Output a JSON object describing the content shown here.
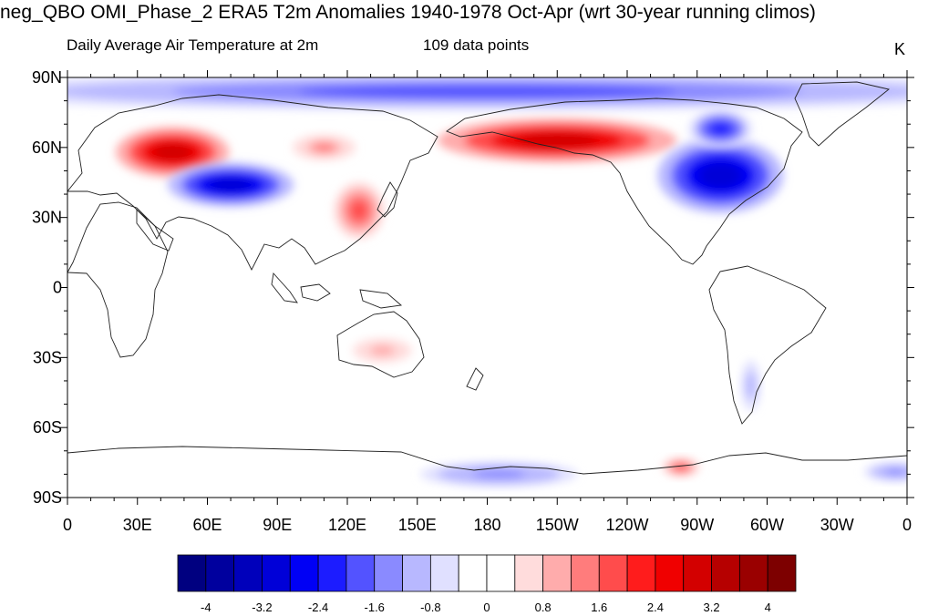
{
  "header": {
    "title": "neg_QBO OMI_Phase_2 ERA5 T2m Anomalies 1940-1978 Oct-Apr (wrt 30-year running climos)",
    "subtitle_left": "Daily Average Air Temperature at 2m",
    "subtitle_center": "109 data points",
    "units": "K"
  },
  "map": {
    "projection": "equirectangular",
    "center_longitude": 180,
    "lon_range": [
      0,
      360
    ],
    "lat_range": [
      -90,
      90
    ],
    "lat_ticks": [
      {
        "lat": 90,
        "label": "90N"
      },
      {
        "lat": 60,
        "label": "60N"
      },
      {
        "lat": 30,
        "label": "30N"
      },
      {
        "lat": 0,
        "label": "0"
      },
      {
        "lat": -30,
        "label": "30S"
      },
      {
        "lat": -60,
        "label": "60S"
      },
      {
        "lat": -90,
        "label": "90S"
      }
    ],
    "lon_ticks": [
      {
        "lon": 0,
        "label": "0"
      },
      {
        "lon": 30,
        "label": "30E"
      },
      {
        "lon": 60,
        "label": "60E"
      },
      {
        "lon": 90,
        "label": "90E"
      },
      {
        "lon": 120,
        "label": "120E"
      },
      {
        "lon": 150,
        "label": "150E"
      },
      {
        "lon": 180,
        "label": "180"
      },
      {
        "lon": 210,
        "label": "150W"
      },
      {
        "lon": 240,
        "label": "120W"
      },
      {
        "lon": 270,
        "label": "90W"
      },
      {
        "lon": 300,
        "label": "60W"
      },
      {
        "lon": 330,
        "label": "30W"
      },
      {
        "lon": 360,
        "label": "0"
      }
    ],
    "anomaly_regions": [
      {
        "name": "arctic-cold-band",
        "lon": 180,
        "lat": 84,
        "rx_deg": 180,
        "ry_deg": 6,
        "value": -1.8
      },
      {
        "name": "eastern-europe-russia-warm",
        "lon": 45,
        "lat": 58,
        "rx_deg": 18,
        "ry_deg": 8,
        "value": 3.0
      },
      {
        "name": "central-asia-cold",
        "lon": 70,
        "lat": 44,
        "rx_deg": 20,
        "ry_deg": 7,
        "value": -3.0
      },
      {
        "name": "siberia-warm",
        "lon": 110,
        "lat": 60,
        "rx_deg": 10,
        "ry_deg": 4,
        "value": 1.2
      },
      {
        "name": "east-asia-warm",
        "lon": 125,
        "lat": 33,
        "rx_deg": 8,
        "ry_deg": 9,
        "value": 1.6
      },
      {
        "name": "alaska-yukon-warm",
        "lon": 210,
        "lat": 63,
        "rx_deg": 38,
        "ry_deg": 7,
        "value": 3.0
      },
      {
        "name": "north-america-cold",
        "lon": 280,
        "lat": 48,
        "rx_deg": 20,
        "ry_deg": 12,
        "value": -3.0
      },
      {
        "name": "hudson-bay-cold",
        "lon": 280,
        "lat": 68,
        "rx_deg": 10,
        "ry_deg": 6,
        "value": -2.2
      },
      {
        "name": "south-america-cold",
        "lon": 293,
        "lat": -42,
        "rx_deg": 3,
        "ry_deg": 8,
        "value": -1.2
      },
      {
        "name": "australia-warm",
        "lon": 135,
        "lat": -27,
        "rx_deg": 12,
        "ry_deg": 5,
        "value": 0.8
      },
      {
        "name": "antarctic-cold-ross",
        "lon": 185,
        "lat": -80,
        "rx_deg": 25,
        "ry_deg": 4,
        "value": -1.4
      },
      {
        "name": "antarctic-warm-amundsen",
        "lon": 263,
        "lat": -77,
        "rx_deg": 6,
        "ry_deg": 3,
        "value": 1.6
      },
      {
        "name": "antarctic-cold-east",
        "lon": 355,
        "lat": -79,
        "rx_deg": 10,
        "ry_deg": 3,
        "value": -1.4
      }
    ]
  },
  "colorbar": {
    "colors": [
      "#000080",
      "#00009e",
      "#0000bb",
      "#0000d8",
      "#0000f5",
      "#1c1cff",
      "#5353ff",
      "#8a8aff",
      "#b8b8ff",
      "#e0e0ff",
      "#ffffff",
      "#ffffff",
      "#ffdcdc",
      "#ffacac",
      "#ff7c7c",
      "#ff4c4c",
      "#ff1c1c",
      "#f00000",
      "#d30000",
      "#b60000",
      "#9a0000",
      "#7d0000"
    ],
    "labels": [
      {
        "index": 1,
        "text": "-4"
      },
      {
        "index": 3,
        "text": "-3.2"
      },
      {
        "index": 5,
        "text": "-2.4"
      },
      {
        "index": 7,
        "text": "-1.6"
      },
      {
        "index": 9,
        "text": "-0.8"
      },
      {
        "index": 11,
        "text": "0"
      },
      {
        "index": 13,
        "text": "0.8"
      },
      {
        "index": 15,
        "text": "1.6"
      },
      {
        "index": 17,
        "text": "2.4"
      },
      {
        "index": 19,
        "text": "3.2"
      },
      {
        "index": 21,
        "text": "4"
      }
    ]
  }
}
